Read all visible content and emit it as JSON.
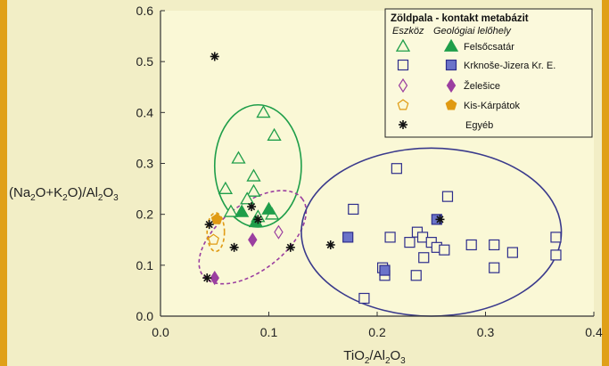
{
  "chart_data": {
    "type": "scatter",
    "xlabel": {
      "base": "TiO",
      "sub1": "2",
      "mid": "/Al",
      "sub2": "2",
      "end": "O",
      "sub3": "3"
    },
    "ylabel": {
      "p1": "(Na",
      "s1": "2",
      "p2": "O+K",
      "s2": "2",
      "p3": "O)/Al",
      "s3": "2",
      "p4": "O",
      "s4": "3"
    },
    "xlim": [
      0,
      0.4
    ],
    "ylim": [
      0,
      0.6
    ],
    "x_ticks": [
      "0.0",
      "0.1",
      "0.2",
      "0.3",
      "0.4"
    ],
    "y_ticks": [
      "0.0",
      "0.1",
      "0.2",
      "0.3",
      "0.4",
      "0.5",
      "0.6"
    ],
    "grid": false,
    "legend": {
      "title": "Zöldpala - kontakt metabázit",
      "col1_header": "Eszköz",
      "col2_header": "Geológiai lelőhely",
      "entries": [
        {
          "label": "Felsőcsatár",
          "symbol": "triangle",
          "color": "#1f9e4a"
        },
        {
          "label": "Krknoše-Jizera Kr. E.",
          "symbol": "square",
          "color": "#2e2e8c"
        },
        {
          "label": "Želešice",
          "symbol": "diamond",
          "color": "#9b3fa0"
        },
        {
          "label": "Kis-Kárpátok",
          "symbol": "pentagon",
          "color": "#e09a12"
        },
        {
          "label": "Egyéb",
          "symbol": "asterisk",
          "color": "#111111"
        }
      ]
    },
    "series": [
      {
        "group": "Felsőcsatár",
        "symbol": "triangle",
        "filled": false,
        "color": "#1f9e4a",
        "points": [
          [
            0.06,
            0.25
          ],
          [
            0.072,
            0.31
          ],
          [
            0.086,
            0.275
          ],
          [
            0.086,
            0.245
          ],
          [
            0.08,
            0.23
          ],
          [
            0.095,
            0.4
          ],
          [
            0.105,
            0.355
          ],
          [
            0.065,
            0.205
          ],
          [
            0.09,
            0.195
          ],
          [
            0.103,
            0.2
          ]
        ]
      },
      {
        "group": "Felsőcsatár",
        "symbol": "triangle",
        "filled": true,
        "color": "#1f9e4a",
        "points": [
          [
            0.075,
            0.205
          ],
          [
            0.088,
            0.185
          ],
          [
            0.1,
            0.21
          ]
        ]
      },
      {
        "group": "Krknoše-Jizera Kr. E.",
        "symbol": "square",
        "filled": false,
        "color": "#2e2e8c",
        "points": [
          [
            0.178,
            0.21
          ],
          [
            0.188,
            0.035
          ],
          [
            0.205,
            0.095
          ],
          [
            0.207,
            0.08
          ],
          [
            0.212,
            0.155
          ],
          [
            0.218,
            0.29
          ],
          [
            0.23,
            0.145
          ],
          [
            0.237,
            0.165
          ],
          [
            0.242,
            0.155
          ],
          [
            0.243,
            0.115
          ],
          [
            0.236,
            0.08
          ],
          [
            0.25,
            0.145
          ],
          [
            0.255,
            0.135
          ],
          [
            0.262,
            0.13
          ],
          [
            0.265,
            0.235
          ],
          [
            0.287,
            0.14
          ],
          [
            0.308,
            0.14
          ],
          [
            0.308,
            0.095
          ],
          [
            0.325,
            0.125
          ],
          [
            0.365,
            0.155
          ],
          [
            0.365,
            0.12
          ]
        ]
      },
      {
        "group": "Krknoše-Jizera Kr. E.",
        "symbol": "square",
        "filled": true,
        "color": "#2e2e8c",
        "points": [
          [
            0.173,
            0.155
          ],
          [
            0.207,
            0.09
          ],
          [
            0.255,
            0.19
          ]
        ]
      },
      {
        "group": "Želešice",
        "symbol": "diamond",
        "filled": false,
        "color": "#9b3fa0",
        "points": [
          [
            0.109,
            0.165
          ]
        ]
      },
      {
        "group": "Želešice",
        "symbol": "diamond",
        "filled": true,
        "color": "#9b3fa0",
        "points": [
          [
            0.05,
            0.075
          ],
          [
            0.085,
            0.15
          ]
        ]
      },
      {
        "group": "Kis-Kárpátok",
        "symbol": "pentagon",
        "filled": false,
        "color": "#e09a12",
        "points": [
          [
            0.049,
            0.15
          ]
        ]
      },
      {
        "group": "Kis-Kárpátok",
        "symbol": "pentagon",
        "filled": true,
        "color": "#e09a12",
        "points": [
          [
            0.052,
            0.19
          ]
        ]
      },
      {
        "group": "Egyéb",
        "symbol": "asterisk",
        "filled": true,
        "color": "#111111",
        "points": [
          [
            0.05,
            0.51
          ],
          [
            0.043,
            0.075
          ],
          [
            0.045,
            0.18
          ],
          [
            0.068,
            0.135
          ],
          [
            0.084,
            0.215
          ],
          [
            0.09,
            0.19
          ],
          [
            0.12,
            0.135
          ],
          [
            0.157,
            0.14
          ],
          [
            0.258,
            0.19
          ]
        ]
      }
    ],
    "ellipses": [
      {
        "group": "Felsőcsatár",
        "cx": 0.09,
        "cy": 0.295,
        "rx": 0.04,
        "ry": 0.12,
        "color": "#1f9e4a",
        "dashed": false
      },
      {
        "group": "Želešice",
        "cx": 0.085,
        "cy": 0.155,
        "rx": 0.058,
        "ry": 0.065,
        "angle": -38,
        "color": "#9b3fa0",
        "dashed": true
      },
      {
        "group": "Kis-Kárpátok",
        "cx": 0.051,
        "cy": 0.165,
        "rx": 0.008,
        "ry": 0.038,
        "color": "#e09a12",
        "dashed": true
      },
      {
        "group": "Krknoše-Jizera Kr. E.",
        "cx": 0.25,
        "cy": 0.165,
        "rx": 0.12,
        "ry": 0.165,
        "color": "#3a3a8c",
        "dashed": false
      }
    ]
  }
}
